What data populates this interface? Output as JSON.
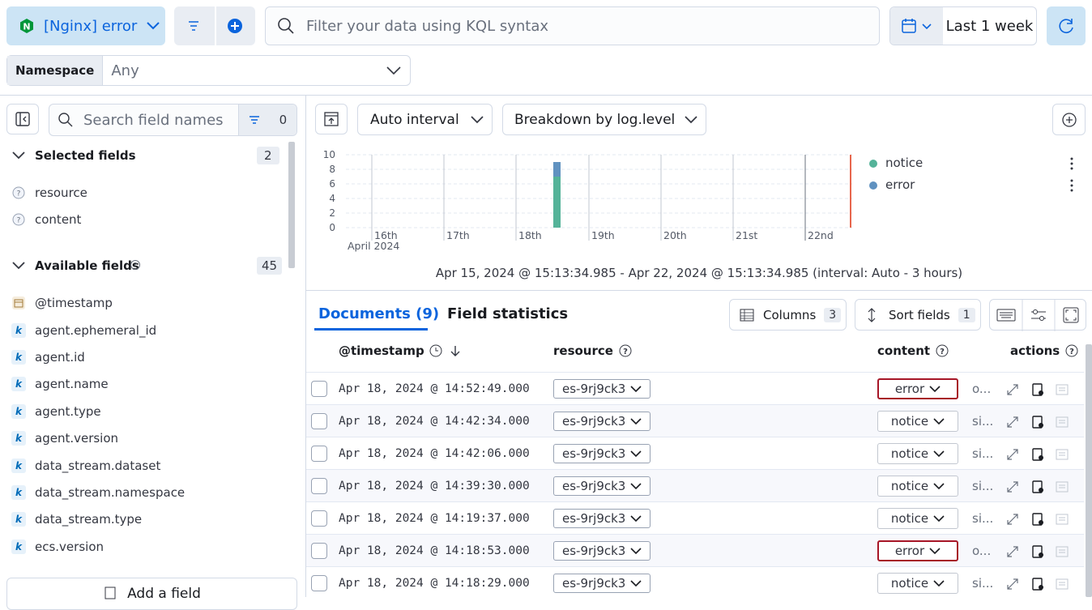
{
  "header": {
    "data_view": "[Nginx] error",
    "query_placeholder": "Filter your data using KQL syntax",
    "time_range": "Last 1 week",
    "namespace_label": "Namespace",
    "namespace_value": "Any"
  },
  "sidebar": {
    "search_placeholder": "Search field names",
    "filter_count": 0,
    "selected_title": "Selected fields",
    "selected_count": 2,
    "selected_fields": [
      "resource",
      "content"
    ],
    "available_title": "Available fields",
    "available_count": 45,
    "timestamp_field": "@timestamp",
    "keyword_icon": "k",
    "keyword_fields": [
      "agent.ephemeral_id",
      "agent.id",
      "agent.name",
      "agent.type",
      "agent.version",
      "data_stream.dataset",
      "data_stream.namespace",
      "data_stream.type",
      "ecs.version"
    ],
    "add_field": "Add a field"
  },
  "toolbar": {
    "interval": "Auto interval",
    "breakdown": "Breakdown by log.level"
  },
  "histogram": {
    "ylim": [
      0,
      10
    ],
    "yticks": [
      0,
      2,
      4,
      6,
      8,
      10
    ],
    "xticks": [
      "16th",
      "17th",
      "18th",
      "19th",
      "20th",
      "21st",
      "22nd"
    ],
    "x_year_label": "April 2024",
    "series": [
      {
        "name": "notice",
        "color": "#54b399",
        "values": [
          7
        ]
      },
      {
        "name": "error",
        "color": "#6092c0",
        "values": [
          2
        ]
      }
    ],
    "caption": "Apr 15, 2024 @ 15:13:34.985 - Apr 22, 2024 @ 15:13:34.985 (interval: Auto - 3 hours)"
  },
  "tabs": {
    "documents": "Documents (9)",
    "field_statistics": "Field statistics"
  },
  "table_controls": {
    "columns": "Columns",
    "columns_count": 3,
    "sort": "Sort fields",
    "sort_count": 1
  },
  "table": {
    "columns": [
      "@timestamp",
      "resource",
      "content",
      "actions"
    ],
    "rows": [
      [
        "Apr 18, 2024 @ 14:52:49.000",
        "es-9rj9ck3",
        "error",
        "o..."
      ],
      [
        "Apr 18, 2024 @ 14:42:34.000",
        "es-9rj9ck3",
        "notice",
        "si..."
      ],
      [
        "Apr 18, 2024 @ 14:42:06.000",
        "es-9rj9ck3",
        "notice",
        "si..."
      ],
      [
        "Apr 18, 2024 @ 14:39:30.000",
        "es-9rj9ck3",
        "notice",
        "si..."
      ],
      [
        "Apr 18, 2024 @ 14:19:37.000",
        "es-9rj9ck3",
        "notice",
        "si..."
      ],
      [
        "Apr 18, 2024 @ 14:18:53.000",
        "es-9rj9ck3",
        "error",
        "o..."
      ],
      [
        "Apr 18, 2024 @ 14:18:29.000",
        "es-9rj9ck3",
        "notice",
        "si..."
      ]
    ]
  }
}
